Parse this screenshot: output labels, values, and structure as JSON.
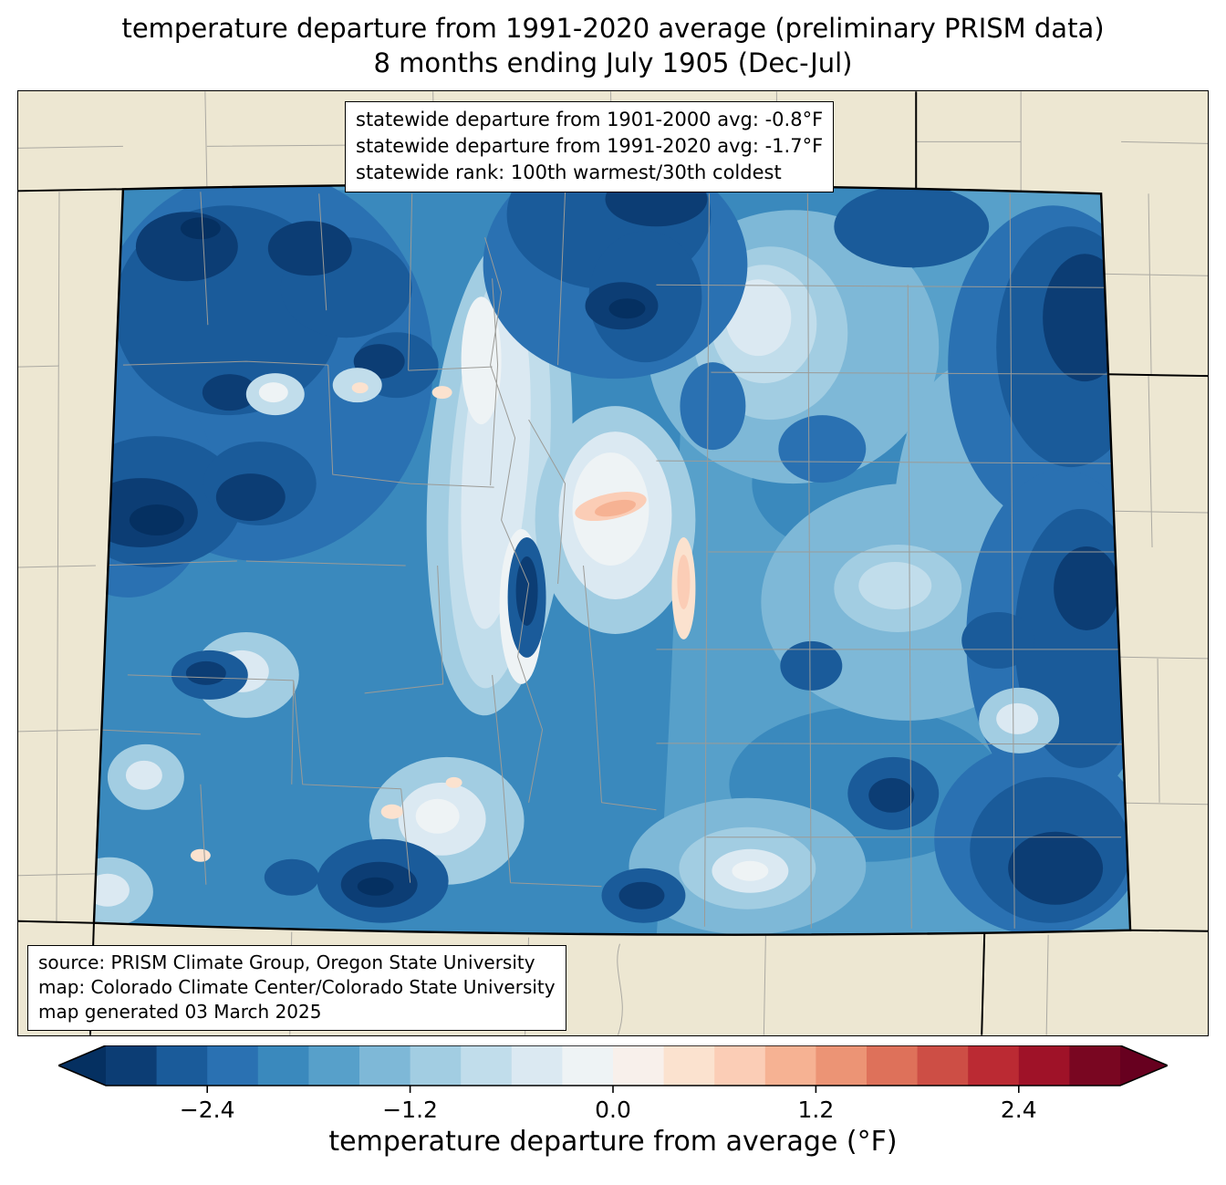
{
  "title": {
    "line1": "temperature departure from 1991-2020 average (preliminary PRISM data)",
    "line2": "8 months ending July 1905 (Dec-Jul)"
  },
  "stats_box": {
    "lines": [
      "statewide departure from 1901-2000 avg: -0.8°F",
      "statewide departure from 1991-2020 avg: -1.7°F",
      "statewide rank: 100th warmest/30th coldest"
    ]
  },
  "source_box": {
    "lines": [
      "source: PRISM Climate Group, Oregon State University",
      "map: Colorado Climate Center/Colorado State University",
      "map generated 03 March 2025"
    ]
  },
  "map": {
    "region": "Colorado with surrounding states and county boundaries",
    "background_color": "#EDE7D2",
    "county_line_color": "#9B9B97",
    "state_line_color": "#000000"
  },
  "colorbar": {
    "label": "temperature departure from average (°F)",
    "range": [
      -3.0,
      3.0
    ],
    "segment_step": 0.3,
    "ticks": [
      {
        "value": -2.4,
        "label": "−2.4"
      },
      {
        "value": -1.2,
        "label": "−1.2"
      },
      {
        "value": 0.0,
        "label": "0.0"
      },
      {
        "value": 1.2,
        "label": "1.2"
      },
      {
        "value": 2.4,
        "label": "2.4"
      }
    ],
    "under_color": "#053061",
    "over_color": "#67001f",
    "segments": [
      "#0c3d74",
      "#1a5b9a",
      "#2a71b2",
      "#3a89bd",
      "#57a0ca",
      "#7eb8d7",
      "#a2cde2",
      "#c1ddeb",
      "#dbe9f2",
      "#eef3f5",
      "#f8f0eb",
      "#fbe2cf",
      "#fbcdb6",
      "#f6b293",
      "#ec9475",
      "#de715a",
      "#cd4e45",
      "#bb2a33",
      "#9f1228",
      "#790621"
    ]
  },
  "chart_data": {
    "type": "heatmap",
    "title": "temperature departure from 1991-2020 average (preliminary PRISM data) — 8 months ending July 1905 (Dec-Jul)",
    "colorbar_label": "temperature departure from average (°F)",
    "colorbar_ticks": [
      -2.4,
      -1.2,
      0.0,
      1.2,
      2.4
    ],
    "value_range_f": [
      -3.0,
      3.0
    ],
    "statewide_departure_from_1901_2000_avg_f": -0.8,
    "statewide_departure_from_1991_2020_avg_f": -1.7,
    "statewide_rank": "100th warmest/30th coldest"
  }
}
